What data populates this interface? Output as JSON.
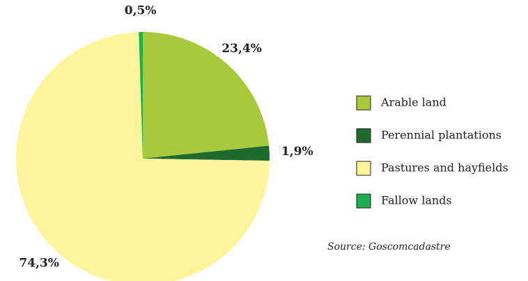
{
  "chart_data": {
    "type": "pie",
    "categories": [
      "Arable land",
      "Perennial plantations",
      "Pastures and hayfields",
      "Fallow lands"
    ],
    "values": [
      23.4,
      1.9,
      74.3,
      0.5
    ],
    "value_labels": [
      "23,4%",
      "1,9%",
      "74,3%",
      "0,5%"
    ],
    "colors": [
      "#a8c93c",
      "#1e6a2f",
      "#fdf59c",
      "#21ad4e"
    ],
    "legend": "right",
    "source": "Source: Goscomcadastre"
  }
}
